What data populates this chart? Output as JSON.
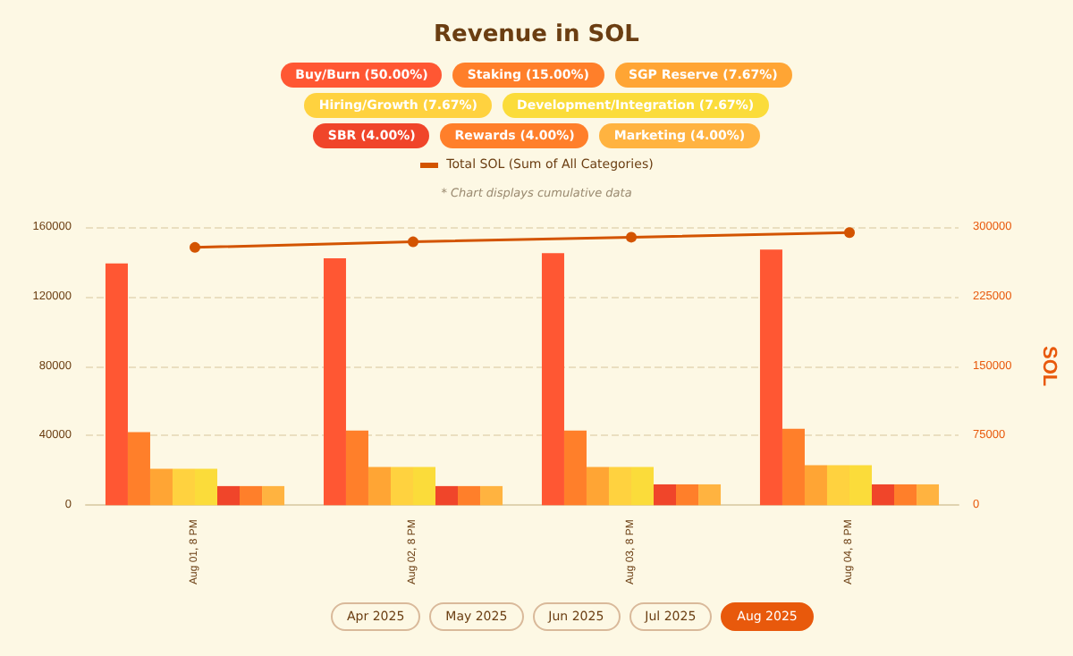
{
  "chart_data": {
    "type": "bar",
    "title": "Revenue in SOL",
    "y2label": "SOL",
    "categories": [
      "Aug 01, 8 PM",
      "Aug 02, 8 PM",
      "Aug 03, 8 PM",
      "Aug 04, 8 PM"
    ],
    "series": [
      {
        "name": "Buy/Burn (50.00%)",
        "color": "#ff5733",
        "values": [
          139000,
          142000,
          145000,
          147000
        ]
      },
      {
        "name": "Staking (15.00%)",
        "color": "#ff7f2a",
        "values": [
          42000,
          43000,
          43000,
          44000
        ]
      },
      {
        "name": "SGP Reserve (7.67%)",
        "color": "#ffa534",
        "values": [
          21000,
          22000,
          22000,
          23000
        ]
      },
      {
        "name": "Hiring/Growth (7.67%)",
        "color": "#ffd23f",
        "values": [
          21000,
          22000,
          22000,
          23000
        ]
      },
      {
        "name": "Development/Integration (7.67%)",
        "color": "#fbdc3a",
        "values": [
          21000,
          22000,
          22000,
          23000
        ]
      },
      {
        "name": "SBR (4.00%)",
        "color": "#f0452a",
        "values": [
          11000,
          11000,
          12000,
          12000
        ]
      },
      {
        "name": "Rewards (4.00%)",
        "color": "#ff7f2a",
        "values": [
          11000,
          11000,
          12000,
          12000
        ]
      },
      {
        "name": "Marketing (4.00%)",
        "color": "#ffb340",
        "values": [
          11000,
          11000,
          12000,
          12000
        ]
      },
      {
        "name": "Total SOL (Sum of All Categories)",
        "color": "#d35400",
        "type": "line",
        "axis": "y2",
        "values": [
          278000,
          284000,
          289000,
          294000
        ]
      }
    ],
    "ylim": [
      0,
      160000
    ],
    "yticks": [
      0,
      40000,
      80000,
      120000,
      160000
    ],
    "y2lim": [
      0,
      300000
    ],
    "y2ticks": [
      0,
      75000,
      150000,
      225000,
      300000
    ],
    "grid": "y",
    "legend": "top",
    "marker": "circle",
    "annotations": [
      "* Chart displays cumulative data",
      "Apr 2025",
      "May 2025",
      "Jun 2025",
      "Jul 2025",
      "Aug 2025"
    ]
  }
}
